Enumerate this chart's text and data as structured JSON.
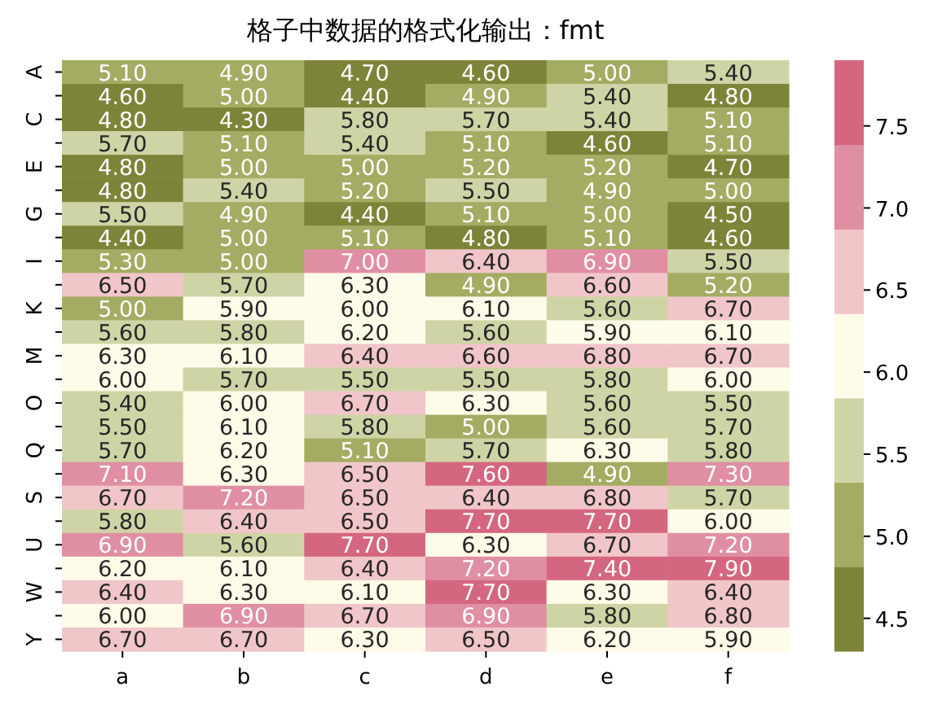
{
  "chart_data": {
    "type": "heatmap",
    "title": "格子中数据的格式化输出：fmt",
    "categories": [
      "a",
      "b",
      "c",
      "d",
      "e",
      "f"
    ],
    "y_categories": [
      "A",
      null,
      "C",
      null,
      "E",
      null,
      "G",
      null,
      "I",
      null,
      "K",
      null,
      "M",
      null,
      "O",
      null,
      "Q",
      null,
      "S",
      null,
      "U",
      null,
      "W",
      null,
      "Y"
    ],
    "cells": [
      [
        5.1,
        4.9,
        4.7,
        4.6,
        5.0,
        5.4
      ],
      [
        4.6,
        5.0,
        4.4,
        4.9,
        5.4,
        4.8
      ],
      [
        4.8,
        4.3,
        5.8,
        5.7,
        5.4,
        5.1
      ],
      [
        5.7,
        5.1,
        5.4,
        5.1,
        4.6,
        5.1
      ],
      [
        4.8,
        5.0,
        5.0,
        5.2,
        5.2,
        4.7
      ],
      [
        4.8,
        5.4,
        5.2,
        5.5,
        4.9,
        5.0
      ],
      [
        5.5,
        4.9,
        4.4,
        5.1,
        5.0,
        4.5
      ],
      [
        4.4,
        5.0,
        5.1,
        4.8,
        5.1,
        4.6
      ],
      [
        5.3,
        5.0,
        7.0,
        6.4,
        6.9,
        5.5
      ],
      [
        6.5,
        5.7,
        6.3,
        4.9,
        6.6,
        5.2
      ],
      [
        5.0,
        5.9,
        6.0,
        6.1,
        5.6,
        6.7
      ],
      [
        5.6,
        5.8,
        6.2,
        5.6,
        5.9,
        6.1
      ],
      [
        6.3,
        6.1,
        6.4,
        6.6,
        6.8,
        6.7
      ],
      [
        6.0,
        5.7,
        5.5,
        5.5,
        5.8,
        6.0
      ],
      [
        5.4,
        6.0,
        6.7,
        6.3,
        5.6,
        5.5
      ],
      [
        5.5,
        6.1,
        5.8,
        5.0,
        5.6,
        5.7
      ],
      [
        5.7,
        6.2,
        5.1,
        5.7,
        6.3,
        5.8
      ],
      [
        7.1,
        6.3,
        6.5,
        7.6,
        4.9,
        7.3
      ],
      [
        6.7,
        7.2,
        6.5,
        6.4,
        6.8,
        5.7
      ],
      [
        5.8,
        6.4,
        6.5,
        7.7,
        7.7,
        6.0
      ],
      [
        6.9,
        5.6,
        7.7,
        6.3,
        6.7,
        7.2
      ],
      [
        6.2,
        6.1,
        6.4,
        7.2,
        7.4,
        7.9
      ],
      [
        6.4,
        6.3,
        6.1,
        7.7,
        6.3,
        6.4
      ],
      [
        6.0,
        6.9,
        6.7,
        6.9,
        5.8,
        6.8
      ],
      [
        6.7,
        6.7,
        6.3,
        6.5,
        6.2,
        5.9
      ]
    ],
    "cell_labels": [
      [
        "5.10",
        "4.90",
        "4.70",
        "4.60",
        "5.00",
        "5.40"
      ],
      [
        "4.60",
        "5.00",
        "4.40",
        "4.90",
        "5.40",
        "4.80"
      ],
      [
        "4.80",
        "4.30",
        "5.80",
        "5.70",
        "5.40",
        "5.10"
      ],
      [
        "5.70",
        "5.10",
        "5.40",
        "5.10",
        "4.60",
        "5.10"
      ],
      [
        "4.80",
        "5.00",
        "5.00",
        "5.20",
        "5.20",
        "4.70"
      ],
      [
        "4.80",
        "5.40",
        "5.20",
        "5.50",
        "4.90",
        "5.00"
      ],
      [
        "5.50",
        "4.90",
        "4.40",
        "5.10",
        "5.00",
        "4.50"
      ],
      [
        "4.40",
        "5.00",
        "5.10",
        "4.80",
        "5.10",
        "4.60"
      ],
      [
        "5.30",
        "5.00",
        "7.00",
        "6.40",
        "6.90",
        "5.50"
      ],
      [
        "6.50",
        "5.70",
        "6.30",
        "4.90",
        "6.60",
        "5.20"
      ],
      [
        "5.00",
        "5.90",
        "6.00",
        "6.10",
        "5.60",
        "6.70"
      ],
      [
        "5.60",
        "5.80",
        "6.20",
        "5.60",
        "5.90",
        "6.10"
      ],
      [
        "6.30",
        "6.10",
        "6.40",
        "6.60",
        "6.80",
        "6.70"
      ],
      [
        "6.00",
        "5.70",
        "5.50",
        "5.50",
        "5.80",
        "6.00"
      ],
      [
        "5.40",
        "6.00",
        "6.70",
        "6.30",
        "5.60",
        "5.50"
      ],
      [
        "5.50",
        "6.10",
        "5.80",
        "5.00",
        "5.60",
        "5.70"
      ],
      [
        "5.70",
        "6.20",
        "5.10",
        "5.70",
        "6.30",
        "5.80"
      ],
      [
        "7.10",
        "6.30",
        "6.50",
        "7.60",
        "4.90",
        "7.30"
      ],
      [
        "6.70",
        "7.20",
        "6.50",
        "6.40",
        "6.80",
        "5.70"
      ],
      [
        "5.80",
        "6.40",
        "6.50",
        "7.70",
        "7.70",
        "6.00"
      ],
      [
        "6.90",
        "5.60",
        "7.70",
        "6.30",
        "6.70",
        "7.20"
      ],
      [
        "6.20",
        "6.10",
        "6.40",
        "7.20",
        "7.40",
        "7.90"
      ],
      [
        "6.40",
        "6.30",
        "6.10",
        "7.70",
        "6.30",
        "6.40"
      ],
      [
        "6.00",
        "6.90",
        "6.70",
        "6.90",
        "5.80",
        "6.80"
      ],
      [
        "6.70",
        "6.70",
        "6.30",
        "6.50",
        "6.20",
        "5.90"
      ]
    ],
    "colors": [
      "#7d8439",
      "#a3ac62",
      "#cfd4a6",
      "#fefbe8",
      "#f1c6c8",
      "#e08fa3",
      "#d4677f"
    ],
    "clim": [
      4.3,
      7.9
    ],
    "cticks": [
      4.5,
      {
        "value": 5,
        "label": "5.0"
      },
      5.5,
      {
        "value": 6,
        "label": "6.0"
      },
      6.5,
      {
        "value": 7,
        "label": "7.0"
      },
      7.5
    ]
  }
}
